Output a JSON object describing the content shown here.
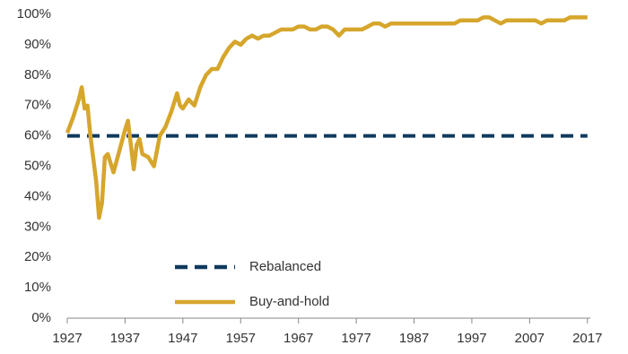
{
  "chart_data": {
    "type": "line",
    "xlim": [
      1927,
      2017.5
    ],
    "xticks": [
      1927,
      1937,
      1947,
      1957,
      1967,
      1977,
      1987,
      1997,
      2007,
      2017
    ],
    "ylim": [
      0,
      100
    ],
    "yticks": [
      {
        "value": 0,
        "label": "0%"
      },
      {
        "value": 10,
        "label": "10%"
      },
      {
        "value": 20,
        "label": "20%"
      },
      {
        "value": 30,
        "label": "30%"
      },
      {
        "value": 40,
        "label": "40%"
      },
      {
        "value": 50,
        "label": "50%"
      },
      {
        "value": 60,
        "label": "60%"
      },
      {
        "value": 70,
        "label": "70%"
      },
      {
        "value": 80,
        "label": "80%"
      },
      {
        "value": 90,
        "label": "90%"
      },
      {
        "value": 100,
        "label": "100%"
      }
    ],
    "legend": "lower center",
    "series": [
      {
        "name": "Rebalanced",
        "color": "#0f3a5e",
        "dashed": true,
        "x": [
          1927,
          2017
        ],
        "values": [
          60,
          60
        ]
      },
      {
        "name": "Buy-and-hold",
        "color": "#d6a62c",
        "dashed": false,
        "x": [
          1927,
          1928,
          1929,
          1929.5,
          1930,
          1930.5,
          1931,
          1932,
          1932.5,
          1933,
          1933.5,
          1934,
          1935,
          1936,
          1937,
          1937.5,
          1938,
          1938.5,
          1939,
          1939.5,
          1940,
          1941,
          1942,
          1943,
          1944,
          1945,
          1946,
          1946.5,
          1947,
          1948,
          1949,
          1950,
          1951,
          1952,
          1953,
          1954,
          1955,
          1956,
          1957,
          1958,
          1959,
          1960,
          1961,
          1962,
          1963,
          1964,
          1965,
          1966,
          1967,
          1968,
          1969,
          1970,
          1971,
          1972,
          1973,
          1974,
          1975,
          1976,
          1977,
          1978,
          1979,
          1980,
          1981,
          1982,
          1983,
          1984,
          1985,
          1986,
          1987,
          1988,
          1989,
          1990,
          1991,
          1992,
          1993,
          1994,
          1995,
          1996,
          1997,
          1998,
          1999,
          2000,
          2001,
          2002,
          2003,
          2004,
          2005,
          2006,
          2007,
          2008,
          2009,
          2010,
          2011,
          2012,
          2013,
          2014,
          2015,
          2016,
          2017
        ],
        "values": [
          61,
          66,
          72,
          76,
          69,
          70,
          60,
          45,
          33,
          38,
          53,
          54,
          48,
          55,
          62,
          65,
          57,
          49,
          57,
          59,
          54,
          53,
          50,
          60,
          63,
          68,
          74,
          70,
          69,
          72,
          70,
          76,
          80,
          82,
          82,
          86,
          89,
          91,
          90,
          92,
          93,
          92,
          93,
          93,
          94,
          95,
          95,
          95,
          96,
          96,
          95,
          95,
          96,
          96,
          95,
          93,
          95,
          95,
          95,
          95,
          96,
          97,
          97,
          96,
          97,
          97,
          97,
          97,
          97,
          97,
          97,
          97,
          97,
          97,
          97,
          97,
          98,
          98,
          98,
          98,
          99,
          99,
          98,
          97,
          98,
          98,
          98,
          98,
          98,
          98,
          97,
          98,
          98,
          98,
          98,
          99,
          99,
          99,
          99
        ]
      }
    ]
  }
}
